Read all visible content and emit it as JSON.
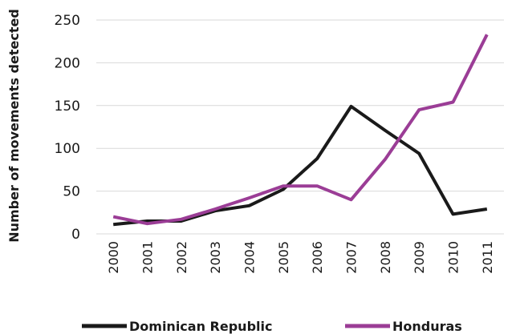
{
  "chart_data": {
    "type": "line",
    "title": "",
    "xlabel": "",
    "ylabel": "Number of movements detected",
    "x": [
      "2000",
      "2001",
      "2002",
      "2003",
      "2004",
      "2005",
      "2006",
      "2007",
      "2008",
      "2009",
      "2010",
      "2011"
    ],
    "ylim": [
      0,
      250
    ],
    "yticks": [
      "0",
      "50",
      "100",
      "150",
      "200",
      "250"
    ],
    "grid": true,
    "legend_position": "bottom",
    "series": [
      {
        "name": "Dominican Republic",
        "color": "#1a1a1a",
        "values": [
          11,
          15,
          15,
          27,
          33,
          52,
          88,
          149,
          121,
          94,
          23,
          29
        ]
      },
      {
        "name": "Honduras",
        "color": "#9b3d96",
        "values": [
          20,
          12,
          17,
          29,
          42,
          56,
          56,
          40,
          87,
          145,
          154,
          233
        ]
      }
    ]
  }
}
